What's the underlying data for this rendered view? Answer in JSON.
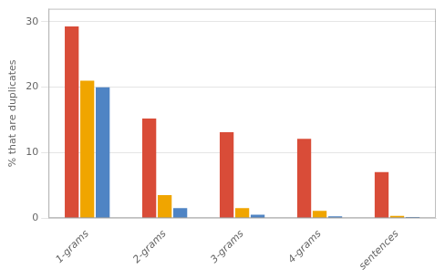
{
  "chart_data": {
    "type": "bar",
    "categories": [
      "1-grams",
      "2-grams",
      "3-grams",
      "4-grams",
      "sentences"
    ],
    "series": [
      {
        "color": "#d94c38",
        "values": [
          29.3,
          15.2,
          13.1,
          12.1,
          7.0
        ]
      },
      {
        "color": "#f0a500",
        "values": [
          21.0,
          3.5,
          1.5,
          1.1,
          0.3
        ]
      },
      {
        "color": "#4f84c4",
        "values": [
          20.0,
          1.5,
          0.5,
          0.25,
          0.15
        ]
      }
    ],
    "ylabel": "% that are duplicates",
    "ylim": [
      0,
      32
    ],
    "yticks": [
      0,
      10,
      20,
      30
    ],
    "grid": true
  }
}
